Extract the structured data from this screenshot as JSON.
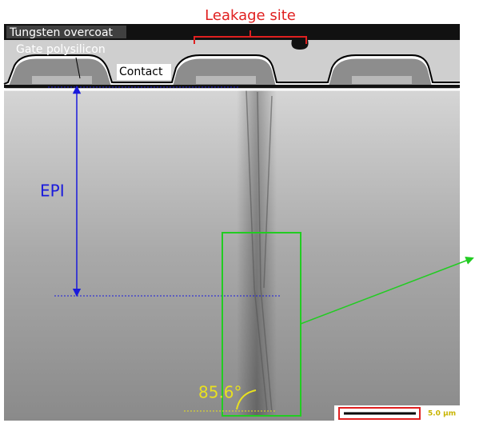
{
  "annotations": {
    "leakage_site": "Leakage site",
    "tungsten_overcoat": "Tungsten overcoat",
    "gate_polysilicon": "Gate polysilicon",
    "contact": "Contact",
    "epi": "EPI",
    "angle": "85.6°",
    "scale_bar": "5.0 µm"
  }
}
